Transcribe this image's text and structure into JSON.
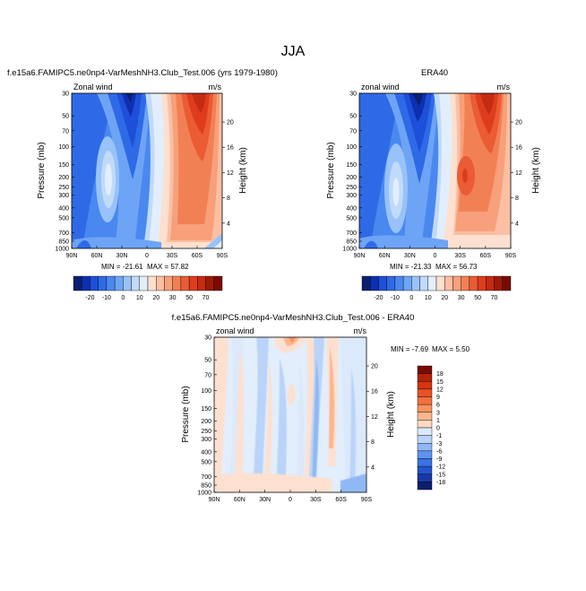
{
  "figure": {
    "title": "JJA"
  },
  "chart_data": [
    {
      "type": "heatmap",
      "id": "model",
      "title": "f.e15a6.FAMIPC5.ne0np4-VarMeshNH3.Club_Test.006 (yrs 1979-1980)",
      "left_label": "Zonal wind",
      "right_label": "m/s",
      "xlabel": "",
      "ylabel": "Pressure (mb)",
      "ylabel_right": "Height (km)",
      "x_ticks": [
        "90N",
        "60N",
        "30N",
        "0",
        "30S",
        "60S",
        "90S"
      ],
      "y_ticks": [
        "30",
        "50",
        "70",
        "100",
        "150",
        "200",
        "250",
        "300",
        "400",
        "500",
        "700",
        "850",
        "1000"
      ],
      "y_ticks_right": [
        "20",
        "16",
        "12",
        "8",
        "4"
      ],
      "min_label": "MIN = -21.61",
      "max_label": "MAX =  57.82",
      "min": -21.61,
      "max": 57.82
    },
    {
      "type": "heatmap",
      "id": "obs",
      "title": "ERA40",
      "left_label": "zonal wind",
      "right_label": "m/s",
      "xlabel": "",
      "ylabel": "Pressure (mb)",
      "ylabel_right": "Height (km)",
      "x_ticks": [
        "90N",
        "60N",
        "30N",
        "0",
        "30S",
        "60S",
        "90S"
      ],
      "y_ticks": [
        "30",
        "50",
        "70",
        "100",
        "150",
        "200",
        "250",
        "300",
        "400",
        "500",
        "700",
        "850",
        "1000"
      ],
      "y_ticks_right": [
        "20",
        "16",
        "12",
        "8",
        "4"
      ],
      "min_label": "MIN = -21.33",
      "max_label": "MAX =  56.73",
      "min": -21.33,
      "max": 56.73
    },
    {
      "type": "heatmap",
      "id": "diff",
      "title": "f.e15a6.FAMIPC5.ne0np4-VarMeshNH3.Club_Test.006 - ERA40",
      "left_label": "zonal wind",
      "right_label": "m/s",
      "xlabel": "",
      "ylabel": "Pressure (mb)",
      "ylabel_right": "Height (km)",
      "x_ticks": [
        "90N",
        "60N",
        "30N",
        "0",
        "30S",
        "60S",
        "90S"
      ],
      "y_ticks": [
        "30",
        "50",
        "70",
        "100",
        "150",
        "200",
        "250",
        "300",
        "400",
        "500",
        "700",
        "850",
        "1000"
      ],
      "y_ticks_right": [
        "20",
        "16",
        "12",
        "8",
        "4"
      ],
      "min_label": "MIN =  -7.69",
      "max_label": "MAX =   5.50",
      "min": -7.69,
      "max": 5.5
    }
  ],
  "colorbar_full": {
    "labels": [
      "-20",
      "-10",
      "0",
      "10",
      "20",
      "30",
      "50",
      "70"
    ],
    "colors": [
      "#0a1f6e",
      "#0d2fb0",
      "#1e4fd8",
      "#2f6ae6",
      "#4a88f0",
      "#6ea4f5",
      "#98c2f8",
      "#c0dafa",
      "#e2eefb",
      "#fde0cf",
      "#fbbfa3",
      "#f7a07b",
      "#f28055",
      "#eb5b34",
      "#de3d1d",
      "#c52b10",
      "#9e1a08",
      "#7a0a03"
    ]
  },
  "colorbar_diff": {
    "labels": [
      "18",
      "15",
      "12",
      "9",
      "6",
      "3",
      "1",
      "0",
      "-1",
      "-3",
      "-6",
      "-9",
      "-12",
      "-15",
      "-18"
    ],
    "colors": [
      "#7a0a03",
      "#b4220a",
      "#d43514",
      "#e85226",
      "#f2703d",
      "#f7935f",
      "#fbb690",
      "#fdd8c2",
      "#dbe9fb",
      "#b9d4f8",
      "#8fb8f4",
      "#5f94ee",
      "#3a72e2",
      "#2553cf",
      "#1738a8",
      "#0a1f6e"
    ]
  }
}
